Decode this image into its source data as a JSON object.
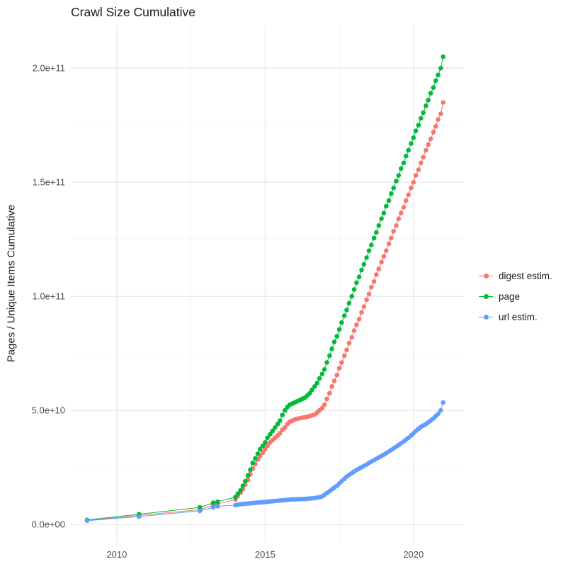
{
  "chart_data": {
    "type": "scatter",
    "title": "Crawl Size Cumulative",
    "xlabel": "",
    "ylabel": "Pages / Unique Items Cumulative",
    "grid": true,
    "legend_position": "right",
    "y_unit": "pages, values listed in billions (1e9); axis labels shown in scientific notation",
    "xlim": [
      2008.45,
      2021.7
    ],
    "ylim": [
      -8,
      219
    ],
    "x_ticks": {
      "values": [
        2010,
        2015,
        2020
      ],
      "labels": [
        "2010",
        "2015",
        "2020"
      ],
      "minor": [
        2012.5,
        2017.5
      ]
    },
    "y_ticks": {
      "values": [
        0,
        50,
        100,
        150,
        200
      ],
      "labels": [
        "0.0e+00",
        "5.0e+10",
        "1.0e+11",
        "1.5e+11",
        "2.0e+11"
      ],
      "minor": [
        25,
        75,
        125,
        175
      ]
    },
    "colors": {
      "grid_major": "#e4e4e4",
      "grid_minor": "#f2f2f2",
      "tick_label": "#4d4d4d",
      "title": "#1a1a1a"
    },
    "series": [
      {
        "name": "digest estim.",
        "color": "#F8766D",
        "points": [
          [
            2009.0,
            1.8
          ],
          [
            2010.75,
            4
          ],
          [
            2012.8,
            6.5
          ],
          [
            2013.25,
            8.5
          ],
          [
            2013.4,
            9
          ],
          [
            2014.0,
            11
          ],
          [
            2014.08,
            12.5
          ],
          [
            2014.17,
            14
          ],
          [
            2014.25,
            15.5
          ],
          [
            2014.33,
            17.5
          ],
          [
            2014.42,
            19.5
          ],
          [
            2014.5,
            22
          ],
          [
            2014.58,
            24.5
          ],
          [
            2014.67,
            26.5
          ],
          [
            2014.75,
            28.5
          ],
          [
            2014.83,
            30
          ],
          [
            2014.92,
            31.5
          ],
          [
            2015.0,
            33
          ],
          [
            2015.08,
            34.5
          ],
          [
            2015.17,
            36
          ],
          [
            2015.25,
            37
          ],
          [
            2015.33,
            38
          ],
          [
            2015.42,
            39
          ],
          [
            2015.5,
            40
          ],
          [
            2015.58,
            41.5
          ],
          [
            2015.67,
            42.5
          ],
          [
            2015.75,
            44
          ],
          [
            2015.83,
            45
          ],
          [
            2015.92,
            45.5
          ],
          [
            2016.0,
            46
          ],
          [
            2016.08,
            46.3
          ],
          [
            2016.17,
            46.6
          ],
          [
            2016.25,
            46.8
          ],
          [
            2016.33,
            47
          ],
          [
            2016.42,
            47.2
          ],
          [
            2016.5,
            47.5
          ],
          [
            2016.58,
            47.8
          ],
          [
            2016.67,
            48.2
          ],
          [
            2016.75,
            49
          ],
          [
            2016.83,
            50
          ],
          [
            2016.92,
            51
          ],
          [
            2017.0,
            52.5
          ],
          [
            2017.08,
            55
          ],
          [
            2017.17,
            57.5
          ],
          [
            2017.25,
            60.5
          ],
          [
            2017.33,
            63
          ],
          [
            2017.42,
            65.5
          ],
          [
            2017.5,
            68.5
          ],
          [
            2017.58,
            71
          ],
          [
            2017.67,
            74
          ],
          [
            2017.75,
            76.5
          ],
          [
            2017.83,
            79.5
          ],
          [
            2017.92,
            82
          ],
          [
            2018.0,
            85
          ],
          [
            2018.08,
            87.5
          ],
          [
            2018.17,
            90
          ],
          [
            2018.25,
            93
          ],
          [
            2018.33,
            95.5
          ],
          [
            2018.42,
            98.5
          ],
          [
            2018.5,
            101
          ],
          [
            2018.58,
            104
          ],
          [
            2018.67,
            106.5
          ],
          [
            2018.75,
            109.5
          ],
          [
            2018.83,
            112
          ],
          [
            2018.92,
            115
          ],
          [
            2019.0,
            117.5
          ],
          [
            2019.08,
            120
          ],
          [
            2019.17,
            123
          ],
          [
            2019.25,
            125.5
          ],
          [
            2019.33,
            128.5
          ],
          [
            2019.42,
            131
          ],
          [
            2019.5,
            134
          ],
          [
            2019.58,
            136.5
          ],
          [
            2019.67,
            139
          ],
          [
            2019.75,
            142
          ],
          [
            2019.83,
            144.5
          ],
          [
            2019.92,
            147.5
          ],
          [
            2020.0,
            150
          ],
          [
            2020.08,
            153
          ],
          [
            2020.17,
            155.5
          ],
          [
            2020.25,
            158.5
          ],
          [
            2020.33,
            161
          ],
          [
            2020.42,
            164
          ],
          [
            2020.5,
            166.5
          ],
          [
            2020.58,
            169
          ],
          [
            2020.67,
            172
          ],
          [
            2020.75,
            174.5
          ],
          [
            2020.83,
            177.5
          ],
          [
            2020.92,
            180
          ],
          [
            2021.0,
            185
          ]
        ]
      },
      {
        "name": "page",
        "color": "#00BA38",
        "points": [
          [
            2009.0,
            2
          ],
          [
            2010.75,
            4.5
          ],
          [
            2012.8,
            7.5
          ],
          [
            2013.25,
            9.5
          ],
          [
            2013.4,
            10
          ],
          [
            2014.0,
            12
          ],
          [
            2014.08,
            13.5
          ],
          [
            2014.17,
            15
          ],
          [
            2014.25,
            17
          ],
          [
            2014.33,
            19
          ],
          [
            2014.42,
            21.5
          ],
          [
            2014.5,
            24
          ],
          [
            2014.58,
            27
          ],
          [
            2014.67,
            29
          ],
          [
            2014.75,
            31
          ],
          [
            2014.83,
            33
          ],
          [
            2014.92,
            34.5
          ],
          [
            2015.0,
            36
          ],
          [
            2015.08,
            38
          ],
          [
            2015.17,
            39.5
          ],
          [
            2015.25,
            41
          ],
          [
            2015.33,
            42.5
          ],
          [
            2015.42,
            44
          ],
          [
            2015.5,
            45.5
          ],
          [
            2015.58,
            48
          ],
          [
            2015.67,
            50
          ],
          [
            2015.75,
            51.5
          ],
          [
            2015.83,
            52.5
          ],
          [
            2015.92,
            53
          ],
          [
            2016.0,
            53.5
          ],
          [
            2016.08,
            54
          ],
          [
            2016.17,
            54.5
          ],
          [
            2016.25,
            55
          ],
          [
            2016.33,
            55.5
          ],
          [
            2016.42,
            56.5
          ],
          [
            2016.5,
            57.5
          ],
          [
            2016.58,
            59
          ],
          [
            2016.67,
            60.5
          ],
          [
            2016.75,
            62
          ],
          [
            2016.83,
            64
          ],
          [
            2016.92,
            66
          ],
          [
            2017.0,
            68
          ],
          [
            2017.08,
            71
          ],
          [
            2017.17,
            74
          ],
          [
            2017.25,
            77
          ],
          [
            2017.33,
            80
          ],
          [
            2017.42,
            82.5
          ],
          [
            2017.5,
            85.5
          ],
          [
            2017.58,
            88.5
          ],
          [
            2017.67,
            91.5
          ],
          [
            2017.75,
            94
          ],
          [
            2017.83,
            97
          ],
          [
            2017.92,
            100
          ],
          [
            2018.0,
            103
          ],
          [
            2018.08,
            106
          ],
          [
            2018.17,
            108.5
          ],
          [
            2018.25,
            111.5
          ],
          [
            2018.33,
            114
          ],
          [
            2018.42,
            117
          ],
          [
            2018.5,
            120
          ],
          [
            2018.58,
            122.5
          ],
          [
            2018.67,
            125.5
          ],
          [
            2018.75,
            128
          ],
          [
            2018.83,
            131
          ],
          [
            2018.92,
            134
          ],
          [
            2019.0,
            136.5
          ],
          [
            2019.08,
            139.5
          ],
          [
            2019.17,
            142
          ],
          [
            2019.25,
            145
          ],
          [
            2019.33,
            147.5
          ],
          [
            2019.42,
            150.5
          ],
          [
            2019.5,
            153
          ],
          [
            2019.58,
            156
          ],
          [
            2019.67,
            158.5
          ],
          [
            2019.75,
            161.5
          ],
          [
            2019.83,
            164
          ],
          [
            2019.92,
            167
          ],
          [
            2020.0,
            169.5
          ],
          [
            2020.08,
            172.5
          ],
          [
            2020.17,
            175
          ],
          [
            2020.25,
            178
          ],
          [
            2020.33,
            180.5
          ],
          [
            2020.42,
            183.5
          ],
          [
            2020.5,
            186
          ],
          [
            2020.58,
            189
          ],
          [
            2020.67,
            191.5
          ],
          [
            2020.75,
            194.5
          ],
          [
            2020.83,
            197
          ],
          [
            2020.92,
            200
          ],
          [
            2021.0,
            205
          ]
        ]
      },
      {
        "name": "url estim.",
        "color": "#619CFF",
        "points": [
          [
            2009.0,
            1.7
          ],
          [
            2010.75,
            3.5
          ],
          [
            2012.8,
            6
          ],
          [
            2013.25,
            7.5
          ],
          [
            2013.4,
            8
          ],
          [
            2014.0,
            8.5
          ],
          [
            2014.08,
            8.7
          ],
          [
            2014.17,
            8.9
          ],
          [
            2014.25,
            9
          ],
          [
            2014.33,
            9.1
          ],
          [
            2014.42,
            9.2
          ],
          [
            2014.5,
            9.3
          ],
          [
            2014.58,
            9.4
          ],
          [
            2014.67,
            9.5
          ],
          [
            2014.75,
            9.6
          ],
          [
            2014.83,
            9.7
          ],
          [
            2014.92,
            9.8
          ],
          [
            2015.0,
            9.9
          ],
          [
            2015.08,
            10
          ],
          [
            2015.17,
            10.1
          ],
          [
            2015.25,
            10.2
          ],
          [
            2015.33,
            10.3
          ],
          [
            2015.42,
            10.4
          ],
          [
            2015.5,
            10.5
          ],
          [
            2015.58,
            10.6
          ],
          [
            2015.67,
            10.7
          ],
          [
            2015.75,
            10.8
          ],
          [
            2015.83,
            10.9
          ],
          [
            2015.92,
            11
          ],
          [
            2016.0,
            11
          ],
          [
            2016.08,
            11.1
          ],
          [
            2016.17,
            11.1
          ],
          [
            2016.25,
            11.2
          ],
          [
            2016.33,
            11.2
          ],
          [
            2016.42,
            11.3
          ],
          [
            2016.5,
            11.4
          ],
          [
            2016.58,
            11.5
          ],
          [
            2016.67,
            11.6
          ],
          [
            2016.75,
            11.8
          ],
          [
            2016.83,
            12
          ],
          [
            2016.92,
            12.3
          ],
          [
            2017.0,
            13
          ],
          [
            2017.08,
            13.8
          ],
          [
            2017.17,
            14.6
          ],
          [
            2017.25,
            15.4
          ],
          [
            2017.33,
            16.2
          ],
          [
            2017.42,
            17
          ],
          [
            2017.5,
            18
          ],
          [
            2017.58,
            19
          ],
          [
            2017.67,
            20
          ],
          [
            2017.75,
            21
          ],
          [
            2017.83,
            21.8
          ],
          [
            2017.92,
            22.5
          ],
          [
            2018.0,
            23.2
          ],
          [
            2018.08,
            23.9
          ],
          [
            2018.17,
            24.5
          ],
          [
            2018.25,
            25.1
          ],
          [
            2018.33,
            25.7
          ],
          [
            2018.42,
            26.3
          ],
          [
            2018.5,
            27
          ],
          [
            2018.58,
            27.6
          ],
          [
            2018.67,
            28.2
          ],
          [
            2018.75,
            28.8
          ],
          [
            2018.83,
            29.4
          ],
          [
            2018.92,
            30
          ],
          [
            2019.0,
            30.6
          ],
          [
            2019.08,
            31.3
          ],
          [
            2019.17,
            32
          ],
          [
            2019.25,
            32.7
          ],
          [
            2019.33,
            33.4
          ],
          [
            2019.42,
            34.1
          ],
          [
            2019.5,
            34.8
          ],
          [
            2019.58,
            35.6
          ],
          [
            2019.67,
            36.4
          ],
          [
            2019.75,
            37.2
          ],
          [
            2019.83,
            38
          ],
          [
            2019.92,
            39
          ],
          [
            2020.0,
            40
          ],
          [
            2020.08,
            41
          ],
          [
            2020.17,
            42
          ],
          [
            2020.25,
            42.8
          ],
          [
            2020.33,
            43.4
          ],
          [
            2020.42,
            44
          ],
          [
            2020.5,
            44.8
          ],
          [
            2020.58,
            45.6
          ],
          [
            2020.67,
            46.5
          ],
          [
            2020.75,
            47.5
          ],
          [
            2020.83,
            48.5
          ],
          [
            2020.92,
            50
          ],
          [
            2021.0,
            53.5
          ]
        ]
      }
    ]
  }
}
